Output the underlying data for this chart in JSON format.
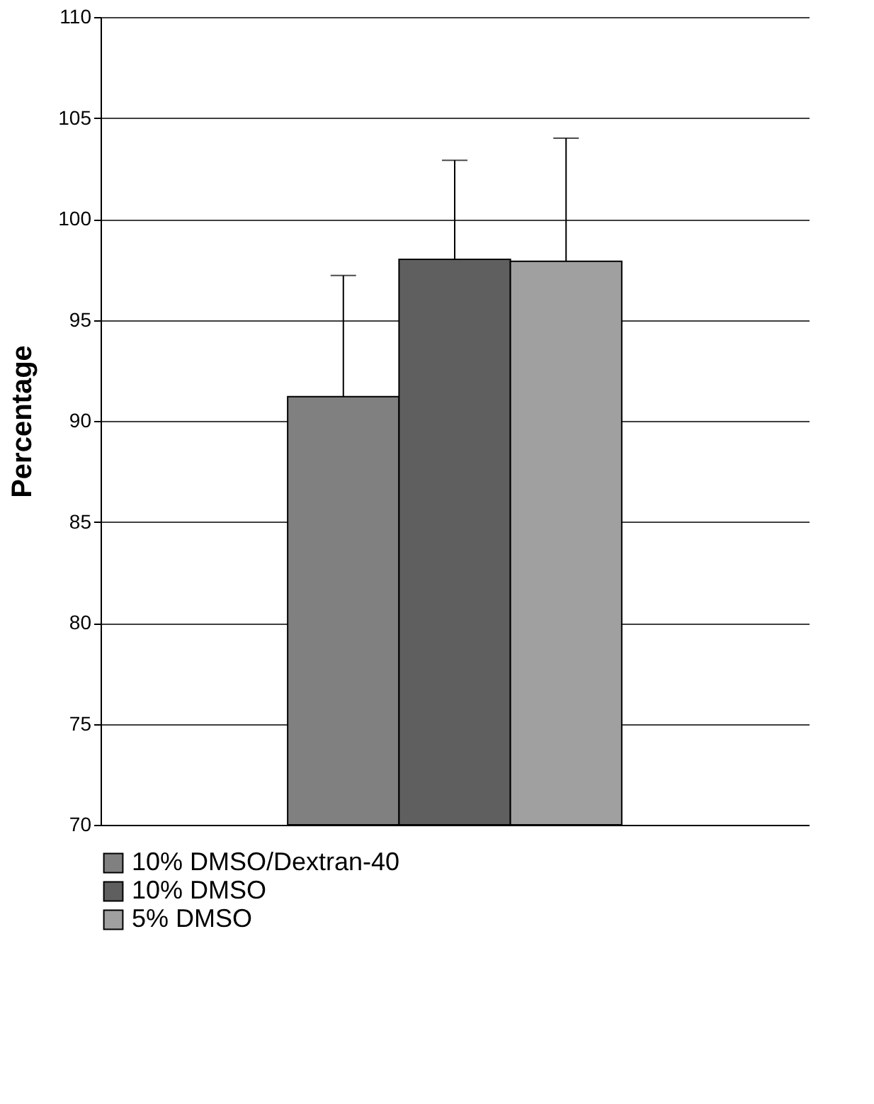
{
  "chart_data": {
    "type": "bar",
    "ylabel": "Percentage",
    "categories": [
      null
    ],
    "series": [
      {
        "name": "10% DMSO/Dextran-40",
        "color": "#808080",
        "values": [
          91.2
        ],
        "errors": [
          [
            91.2,
            97.2
          ]
        ]
      },
      {
        "name": "10% DMSO",
        "color": "#5f5f5f",
        "values": [
          98.0
        ],
        "errors": [
          [
            98.0,
            102.9
          ]
        ]
      },
      {
        "name": "5% DMSO",
        "color": "#a0a0a0",
        "values": [
          97.9
        ],
        "errors": [
          [
            97.9,
            104.0
          ]
        ]
      }
    ],
    "ylim": [
      70,
      110
    ],
    "yticks": [
      70,
      75,
      80,
      85,
      90,
      95,
      100,
      105,
      110
    ],
    "grid": "y",
    "legend": "bottom",
    "tick_labels": "y"
  }
}
